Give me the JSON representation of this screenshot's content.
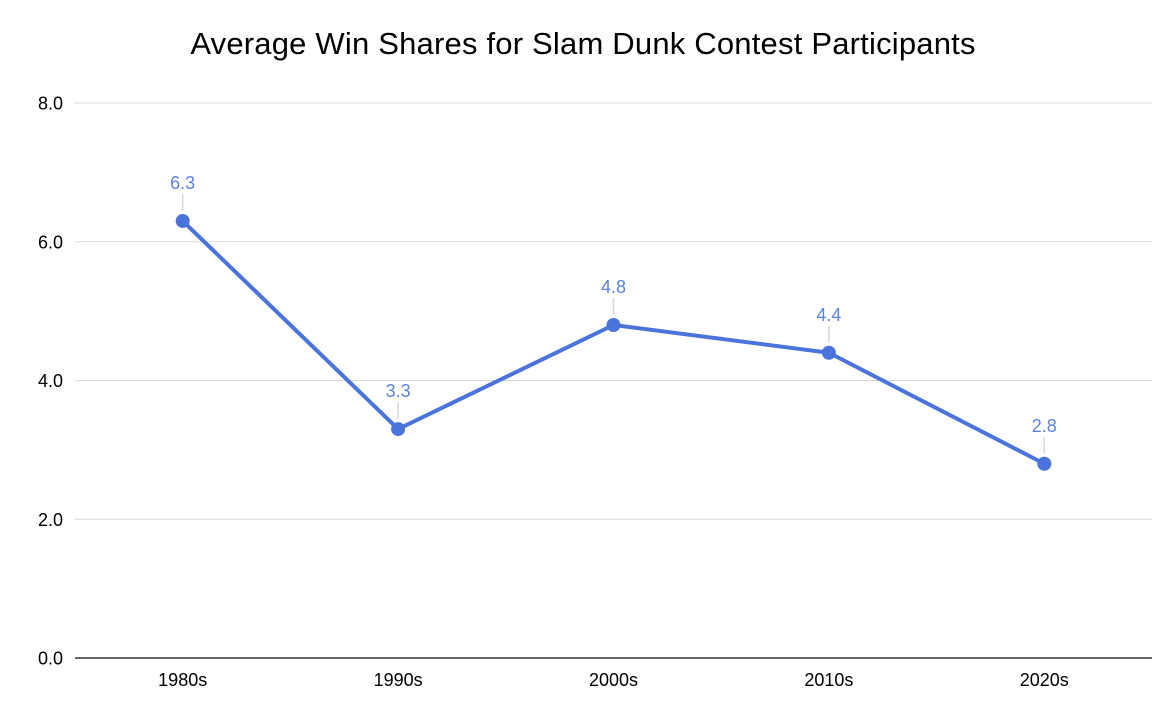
{
  "chart_data": {
    "type": "line",
    "title": "Average Win Shares for Slam Dunk Contest Participants",
    "categories": [
      "1980s",
      "1990s",
      "2000s",
      "2010s",
      "2020s"
    ],
    "series": [
      {
        "name": "Average Win Shares",
        "values": [
          6.3,
          3.3,
          4.8,
          4.4,
          2.8
        ]
      }
    ],
    "data_labels": [
      "6.3",
      "3.3",
      "4.8",
      "4.4",
      "2.8"
    ],
    "xlabel": "",
    "ylabel": "",
    "ylim": [
      0,
      8
    ],
    "yticks": [
      0,
      2,
      4,
      6,
      8
    ],
    "ytick_labels": [
      "0.0",
      "2.0",
      "4.0",
      "6.0",
      "8.0"
    ],
    "grid": true,
    "legend": "none",
    "colors": {
      "series": "#4a74dc",
      "label_text": "#5b84e0",
      "gridline": "#d9d9d9",
      "leader": "#d9d9d9",
      "axis": "#333333",
      "tick": "#000000",
      "background": "#ffffff"
    }
  }
}
